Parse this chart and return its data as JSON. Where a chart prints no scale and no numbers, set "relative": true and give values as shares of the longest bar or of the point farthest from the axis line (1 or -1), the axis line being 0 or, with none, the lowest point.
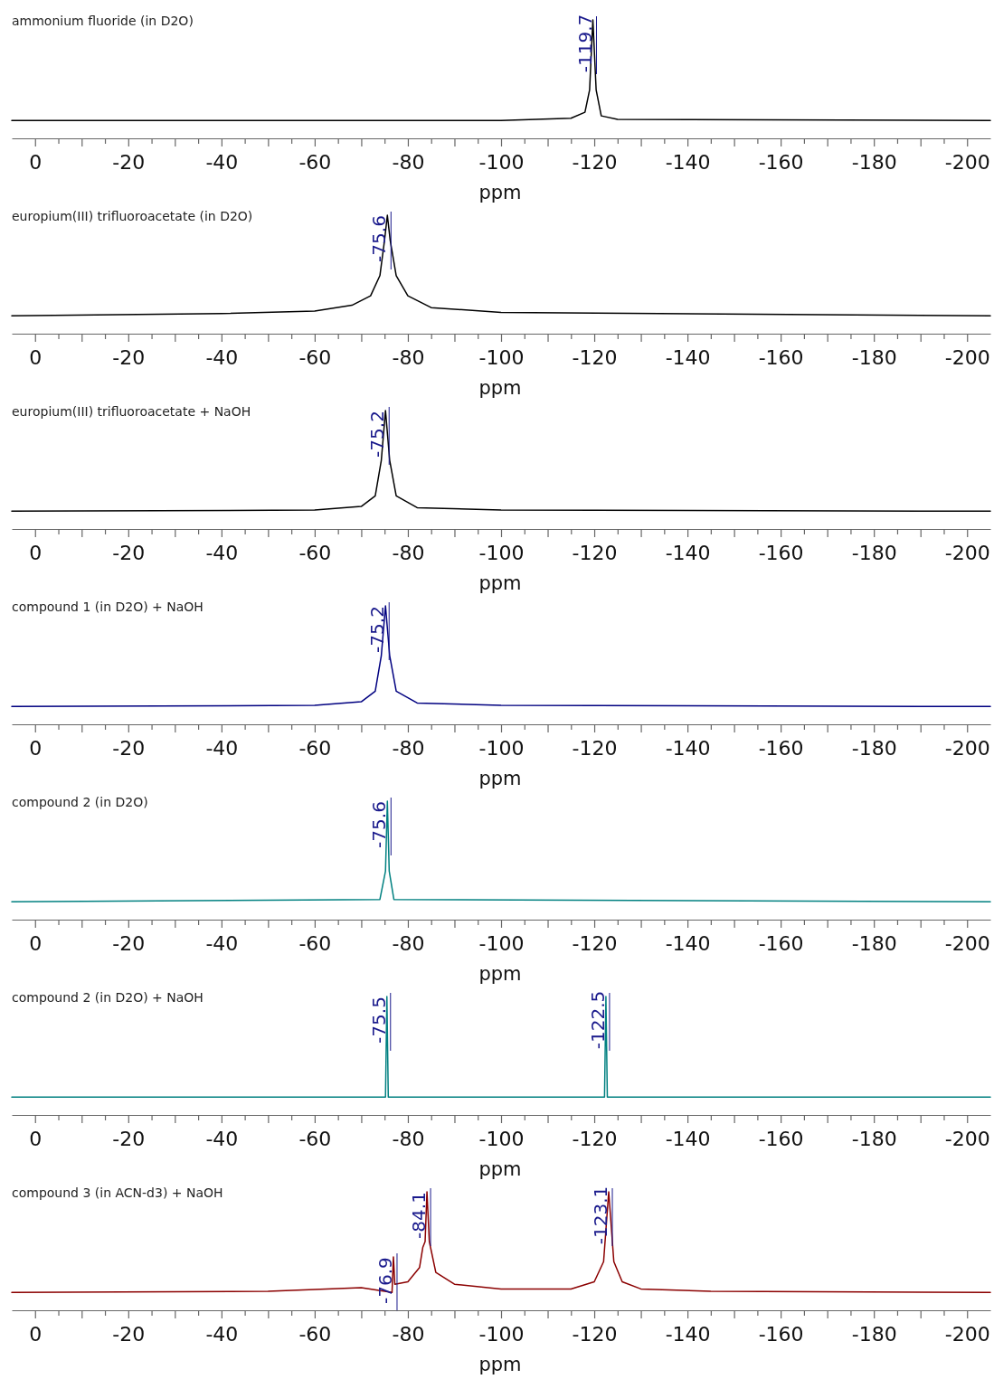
{
  "chart_data": [
    {
      "type": "line",
      "title": "ammonium fluoride (in D2O)",
      "xlabel": "ppm",
      "relative": true,
      "legend": false,
      "xlim": [
        5,
        -205
      ],
      "xticks": [
        0,
        {
          "value": -5,
          "label": null
        },
        {
          "value": -10,
          "label": null
        },
        {
          "value": -15,
          "label": null
        },
        -20,
        {
          "value": -25,
          "label": null
        },
        {
          "value": -30,
          "label": null
        },
        {
          "value": -35,
          "label": null
        },
        -40,
        {
          "value": -45,
          "label": null
        },
        {
          "value": -50,
          "label": null
        },
        {
          "value": -55,
          "label": null
        },
        -60,
        {
          "value": -65,
          "label": null
        },
        {
          "value": -70,
          "label": null
        },
        {
          "value": -75,
          "label": null
        },
        -80,
        {
          "value": -85,
          "label": null
        },
        {
          "value": -90,
          "label": null
        },
        {
          "value": -95,
          "label": null
        },
        -100,
        {
          "value": -105,
          "label": null
        },
        {
          "value": -110,
          "label": null
        },
        {
          "value": -115,
          "label": null
        },
        -120,
        {
          "value": -125,
          "label": null
        },
        {
          "value": -130,
          "label": null
        },
        {
          "value": -135,
          "label": null
        },
        -140,
        {
          "value": -145,
          "label": null
        },
        {
          "value": -150,
          "label": null
        },
        {
          "value": -155,
          "label": null
        },
        -160,
        {
          "value": -165,
          "label": null
        },
        {
          "value": -170,
          "label": null
        },
        {
          "value": -175,
          "label": null
        },
        -180,
        {
          "value": -185,
          "label": null
        },
        {
          "value": -190,
          "label": null
        },
        {
          "value": -195,
          "label": null
        },
        -200
      ],
      "x": [
        5,
        -100,
        -115,
        -118,
        -119,
        -119.4,
        -119.7,
        -120,
        -120.4,
        -121.5,
        -125,
        -205
      ],
      "series": [
        {
          "color": "#000000",
          "values": [
            0.15,
            0.15,
            0.17,
            0.22,
            0.41,
            0.75,
            1,
            0.75,
            0.41,
            0.19,
            0.16,
            0.15
          ]
        }
      ],
      "annotations": [
        {
          "text": "-119.7",
          "x": -119.7,
          "y": 1
        }
      ]
    },
    {
      "type": "line",
      "title": "europium(III) trifluoroacetate (in D2O)",
      "xlabel": "ppm",
      "relative": true,
      "legend": false,
      "xlim": [
        5,
        -205
      ],
      "xticks": [
        0,
        {
          "value": -5,
          "label": null
        },
        {
          "value": -10,
          "label": null
        },
        {
          "value": -15,
          "label": null
        },
        -20,
        {
          "value": -25,
          "label": null
        },
        {
          "value": -30,
          "label": null
        },
        {
          "value": -35,
          "label": null
        },
        -40,
        {
          "value": -45,
          "label": null
        },
        {
          "value": -50,
          "label": null
        },
        {
          "value": -55,
          "label": null
        },
        -60,
        {
          "value": -65,
          "label": null
        },
        {
          "value": -70,
          "label": null
        },
        {
          "value": -75,
          "label": null
        },
        -80,
        {
          "value": -85,
          "label": null
        },
        {
          "value": -90,
          "label": null
        },
        {
          "value": -95,
          "label": null
        },
        -100,
        {
          "value": -105,
          "label": null
        },
        {
          "value": -110,
          "label": null
        },
        {
          "value": -115,
          "label": null
        },
        -120,
        {
          "value": -125,
          "label": null
        },
        {
          "value": -130,
          "label": null
        },
        {
          "value": -135,
          "label": null
        },
        -140,
        {
          "value": -145,
          "label": null
        },
        {
          "value": -150,
          "label": null
        },
        {
          "value": -155,
          "label": null
        },
        -160,
        {
          "value": -165,
          "label": null
        },
        {
          "value": -170,
          "label": null
        },
        {
          "value": -175,
          "label": null
        },
        -180,
        {
          "value": -185,
          "label": null
        },
        {
          "value": -190,
          "label": null
        },
        {
          "value": -195,
          "label": null
        },
        -200
      ],
      "x": [
        5,
        -40,
        -60,
        -68,
        -72,
        -74,
        -75,
        -75.6,
        -76.2,
        -77.5,
        -80,
        -85,
        -100,
        -205
      ],
      "series": [
        {
          "color": "#000000",
          "values": [
            0.15,
            0.17,
            0.19,
            0.24,
            0.32,
            0.49,
            0.79,
            1,
            0.79,
            0.49,
            0.32,
            0.22,
            0.18,
            0.15
          ]
        }
      ],
      "annotations": [
        {
          "text": "-75.6",
          "x": -75.6,
          "y": 1
        }
      ]
    },
    {
      "type": "line",
      "title": "europium(III) trifluoroacetate + NaOH",
      "xlabel": "ppm",
      "relative": true,
      "legend": false,
      "xlim": [
        5,
        -205
      ],
      "xticks": [
        0,
        {
          "value": -5,
          "label": null
        },
        {
          "value": -10,
          "label": null
        },
        {
          "value": -15,
          "label": null
        },
        -20,
        {
          "value": -25,
          "label": null
        },
        {
          "value": -30,
          "label": null
        },
        {
          "value": -35,
          "label": null
        },
        -40,
        {
          "value": -45,
          "label": null
        },
        {
          "value": -50,
          "label": null
        },
        {
          "value": -55,
          "label": null
        },
        -60,
        {
          "value": -65,
          "label": null
        },
        {
          "value": -70,
          "label": null
        },
        {
          "value": -75,
          "label": null
        },
        -80,
        {
          "value": -85,
          "label": null
        },
        {
          "value": -90,
          "label": null
        },
        {
          "value": -95,
          "label": null
        },
        -100,
        {
          "value": -105,
          "label": null
        },
        {
          "value": -110,
          "label": null
        },
        {
          "value": -115,
          "label": null
        },
        -120,
        {
          "value": -125,
          "label": null
        },
        {
          "value": -130,
          "label": null
        },
        {
          "value": -135,
          "label": null
        },
        -140,
        {
          "value": -145,
          "label": null
        },
        {
          "value": -150,
          "label": null
        },
        {
          "value": -155,
          "label": null
        },
        -160,
        {
          "value": -165,
          "label": null
        },
        {
          "value": -170,
          "label": null
        },
        {
          "value": -175,
          "label": null
        },
        -180,
        {
          "value": -185,
          "label": null
        },
        {
          "value": -190,
          "label": null
        },
        {
          "value": -195,
          "label": null
        },
        -200
      ],
      "x": [
        5,
        -60,
        -70,
        -73,
        -74.3,
        -75.2,
        -76.1,
        -77.5,
        -82,
        -100,
        -205
      ],
      "series": [
        {
          "color": "#000000",
          "values": [
            0.15,
            0.16,
            0.19,
            0.28,
            0.58,
            1,
            0.58,
            0.28,
            0.18,
            0.16,
            0.15
          ]
        }
      ],
      "annotations": [
        {
          "text": "-75.2",
          "x": -75.2,
          "y": 1
        }
      ]
    },
    {
      "type": "line",
      "title": "compound 1 (in D2O) + NaOH",
      "xlabel": "ppm",
      "relative": true,
      "legend": false,
      "xlim": [
        5,
        -205
      ],
      "xticks": [
        0,
        {
          "value": -5,
          "label": null
        },
        {
          "value": -10,
          "label": null
        },
        {
          "value": -15,
          "label": null
        },
        -20,
        {
          "value": -25,
          "label": null
        },
        {
          "value": -30,
          "label": null
        },
        {
          "value": -35,
          "label": null
        },
        -40,
        {
          "value": -45,
          "label": null
        },
        {
          "value": -50,
          "label": null
        },
        {
          "value": -55,
          "label": null
        },
        -60,
        {
          "value": -65,
          "label": null
        },
        {
          "value": -70,
          "label": null
        },
        {
          "value": -75,
          "label": null
        },
        -80,
        {
          "value": -85,
          "label": null
        },
        {
          "value": -90,
          "label": null
        },
        {
          "value": -95,
          "label": null
        },
        -100,
        {
          "value": -105,
          "label": null
        },
        {
          "value": -110,
          "label": null
        },
        {
          "value": -115,
          "label": null
        },
        -120,
        {
          "value": -125,
          "label": null
        },
        {
          "value": -130,
          "label": null
        },
        {
          "value": -135,
          "label": null
        },
        -140,
        {
          "value": -145,
          "label": null
        },
        {
          "value": -150,
          "label": null
        },
        {
          "value": -155,
          "label": null
        },
        -160,
        {
          "value": -165,
          "label": null
        },
        {
          "value": -170,
          "label": null
        },
        {
          "value": -175,
          "label": null
        },
        -180,
        {
          "value": -185,
          "label": null
        },
        {
          "value": -190,
          "label": null
        },
        {
          "value": -195,
          "label": null
        },
        -200
      ],
      "x": [
        5,
        -60,
        -70,
        -73,
        -74.3,
        -75.2,
        -76.1,
        -77.5,
        -82,
        -100,
        -205
      ],
      "series": [
        {
          "color": "#000080",
          "values": [
            0.15,
            0.16,
            0.19,
            0.28,
            0.58,
            1,
            0.58,
            0.28,
            0.18,
            0.16,
            0.15
          ]
        }
      ],
      "annotations": [
        {
          "text": "-75.2",
          "x": -75.2,
          "y": 1
        }
      ]
    },
    {
      "type": "line",
      "title": "compound 2 (in D2O)",
      "xlabel": "ppm",
      "relative": true,
      "legend": false,
      "xlim": [
        5,
        -205
      ],
      "xticks": [
        0,
        {
          "value": -5,
          "label": null
        },
        {
          "value": -10,
          "label": null
        },
        {
          "value": -15,
          "label": null
        },
        -20,
        {
          "value": -25,
          "label": null
        },
        {
          "value": -30,
          "label": null
        },
        {
          "value": -35,
          "label": null
        },
        -40,
        {
          "value": -45,
          "label": null
        },
        {
          "value": -50,
          "label": null
        },
        {
          "value": -55,
          "label": null
        },
        -60,
        {
          "value": -65,
          "label": null
        },
        {
          "value": -70,
          "label": null
        },
        {
          "value": -75,
          "label": null
        },
        -80,
        {
          "value": -85,
          "label": null
        },
        {
          "value": -90,
          "label": null
        },
        {
          "value": -95,
          "label": null
        },
        -100,
        {
          "value": -105,
          "label": null
        },
        {
          "value": -110,
          "label": null
        },
        {
          "value": -115,
          "label": null
        },
        -120,
        {
          "value": -125,
          "label": null
        },
        {
          "value": -130,
          "label": null
        },
        {
          "value": -135,
          "label": null
        },
        -140,
        {
          "value": -145,
          "label": null
        },
        {
          "value": -150,
          "label": null
        },
        {
          "value": -155,
          "label": null
        },
        -160,
        {
          "value": -165,
          "label": null
        },
        {
          "value": -170,
          "label": null
        },
        {
          "value": -175,
          "label": null
        },
        -180,
        {
          "value": -185,
          "label": null
        },
        {
          "value": -190,
          "label": null
        },
        {
          "value": -195,
          "label": null
        },
        -200
      ],
      "x": [
        5,
        -74,
        -75.2,
        -75.6,
        -76,
        -77,
        -205
      ],
      "series": [
        {
          "color": "#008080",
          "values": [
            0.15,
            0.17,
            0.41,
            1,
            0.41,
            0.17,
            0.15
          ]
        }
      ],
      "annotations": [
        {
          "text": "-75.6",
          "x": -75.6,
          "y": 1
        }
      ]
    },
    {
      "type": "line",
      "title": "compound 2 (in D2O) + NaOH",
      "xlabel": "ppm",
      "relative": true,
      "legend": false,
      "xlim": [
        5,
        -205
      ],
      "xticks": [
        0,
        {
          "value": -5,
          "label": null
        },
        {
          "value": -10,
          "label": null
        },
        {
          "value": -15,
          "label": null
        },
        -20,
        {
          "value": -25,
          "label": null
        },
        {
          "value": -30,
          "label": null
        },
        {
          "value": -35,
          "label": null
        },
        -40,
        {
          "value": -45,
          "label": null
        },
        {
          "value": -50,
          "label": null
        },
        {
          "value": -55,
          "label": null
        },
        -60,
        {
          "value": -65,
          "label": null
        },
        {
          "value": -70,
          "label": null
        },
        {
          "value": -75,
          "label": null
        },
        -80,
        {
          "value": -85,
          "label": null
        },
        {
          "value": -90,
          "label": null
        },
        {
          "value": -95,
          "label": null
        },
        -100,
        {
          "value": -105,
          "label": null
        },
        {
          "value": -110,
          "label": null
        },
        {
          "value": -115,
          "label": null
        },
        -120,
        {
          "value": -125,
          "label": null
        },
        {
          "value": -130,
          "label": null
        },
        {
          "value": -135,
          "label": null
        },
        -140,
        {
          "value": -145,
          "label": null
        },
        {
          "value": -150,
          "label": null
        },
        {
          "value": -155,
          "label": null
        },
        -160,
        {
          "value": -165,
          "label": null
        },
        {
          "value": -170,
          "label": null
        },
        {
          "value": -175,
          "label": null
        },
        -180,
        {
          "value": -185,
          "label": null
        },
        {
          "value": -190,
          "label": null
        },
        {
          "value": -195,
          "label": null
        },
        -200
      ],
      "x": [
        5,
        -75.2,
        -75.5,
        -75.8,
        -122.2,
        -122.5,
        -122.8,
        -205
      ],
      "series": [
        {
          "color": "#008080",
          "values": [
            0.15,
            0.15,
            1,
            0.15,
            0.15,
            1,
            0.15,
            0.15
          ]
        }
      ],
      "annotations": [
        {
          "text": "-75.5",
          "x": -75.5,
          "y": 1
        },
        {
          "text": "-122.5",
          "x": -122.5,
          "y": 1
        }
      ]
    },
    {
      "type": "line",
      "title": "compound 3 (in ACN-d3) + NaOH",
      "xlabel": "ppm",
      "relative": true,
      "legend": false,
      "xlim": [
        5,
        -205
      ],
      "xticks": [
        0,
        {
          "value": -5,
          "label": null
        },
        {
          "value": -10,
          "label": null
        },
        {
          "value": -15,
          "label": null
        },
        -20,
        {
          "value": -25,
          "label": null
        },
        {
          "value": -30,
          "label": null
        },
        {
          "value": -35,
          "label": null
        },
        -40,
        {
          "value": -45,
          "label": null
        },
        {
          "value": -50,
          "label": null
        },
        {
          "value": -55,
          "label": null
        },
        -60,
        {
          "value": -65,
          "label": null
        },
        {
          "value": -70,
          "label": null
        },
        {
          "value": -75,
          "label": null
        },
        -80,
        {
          "value": -85,
          "label": null
        },
        {
          "value": -90,
          "label": null
        },
        {
          "value": -95,
          "label": null
        },
        -100,
        {
          "value": -105,
          "label": null
        },
        {
          "value": -110,
          "label": null
        },
        {
          "value": -115,
          "label": null
        },
        -120,
        {
          "value": -125,
          "label": null
        },
        {
          "value": -130,
          "label": null
        },
        {
          "value": -135,
          "label": null
        },
        -140,
        {
          "value": -145,
          "label": null
        },
        {
          "value": -150,
          "label": null
        },
        {
          "value": -155,
          "label": null
        },
        -160,
        {
          "value": -165,
          "label": null
        },
        {
          "value": -170,
          "label": null
        },
        {
          "value": -175,
          "label": null
        },
        -180,
        {
          "value": -185,
          "label": null
        },
        {
          "value": -190,
          "label": null
        },
        {
          "value": -195,
          "label": null
        },
        -200
      ],
      "x": [
        5,
        -50,
        -70,
        -76.6,
        -76.9,
        -77.2,
        -80,
        -82.5,
        -83.2,
        -83.7,
        -84.1,
        -84.6,
        -86,
        -90,
        -100,
        -115,
        -120,
        -122,
        -123.1,
        -124.2,
        -126,
        -130,
        -145,
        -205
      ],
      "series": [
        {
          "color": "#8b0000",
          "values": [
            0.15,
            0.16,
            0.19,
            0.15,
            0.45,
            0.22,
            0.24,
            0.36,
            0.53,
            0.58,
            1,
            0.58,
            0.32,
            0.22,
            0.18,
            0.18,
            0.24,
            0.41,
            1,
            0.41,
            0.24,
            0.18,
            0.16,
            0.15
          ]
        }
      ],
      "annotations": [
        {
          "text": "-76.9",
          "x": -76.9,
          "y": 0.45
        },
        {
          "text": "-84.1",
          "x": -84.1,
          "y": 1
        },
        {
          "text": "-123.1",
          "x": -123.1,
          "y": 1
        }
      ]
    }
  ]
}
